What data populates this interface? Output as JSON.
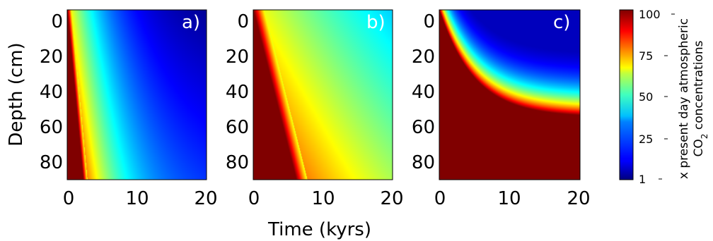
{
  "chart_data": {
    "type": "heatmap",
    "panels": [
      {
        "label": "a)",
        "model": "linear-front",
        "front_slope_kyr_per_cm": 0.024,
        "front_width_kyr": 0.6,
        "decay_kyr": 6
      },
      {
        "label": "b)",
        "model": "linear-front",
        "front_slope_kyr_per_cm": 0.065,
        "front_width_kyr": 1.6,
        "decay_kyr": 30
      },
      {
        "label": "c)",
        "model": "saturating-front",
        "front_max_cm": 60,
        "front_tau_kyr": 5,
        "front_width_cm": 12
      }
    ],
    "xlabel": "Time (kyrs)",
    "ylabel": "Depth (cm)",
    "xlim": [
      0,
      20
    ],
    "ylim": [
      95,
      0
    ],
    "xticks": [
      "0",
      "10",
      "20"
    ],
    "yticks": [
      "0",
      "20",
      "40",
      "60",
      "80"
    ],
    "colorbar": {
      "label_line1": "x present day atmospheric",
      "label_line2_main": "CO",
      "label_line2_sub": "2",
      "label_line2_rest": " concentrations",
      "ticks": [
        "1",
        "25",
        "50",
        "75",
        "100"
      ],
      "range": [
        1,
        100
      ],
      "colormap": "jet"
    }
  }
}
